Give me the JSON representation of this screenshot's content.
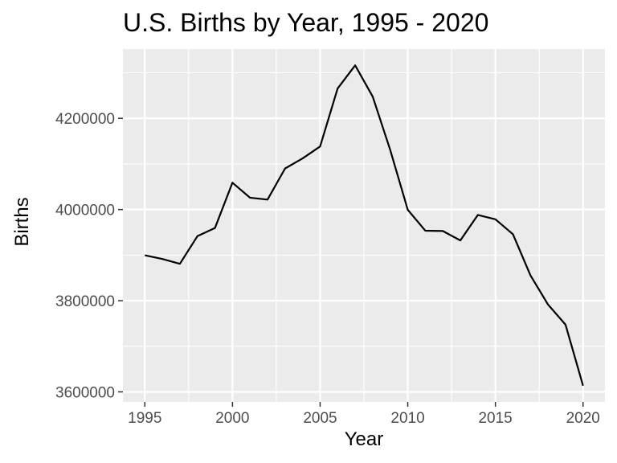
{
  "chart_data": {
    "type": "line",
    "title": "U.S. Births by Year, 1995 - 2020",
    "xlabel": "Year",
    "ylabel": "Births",
    "x": [
      1995,
      1996,
      1997,
      1998,
      1999,
      2000,
      2001,
      2002,
      2003,
      2004,
      2005,
      2006,
      2007,
      2008,
      2009,
      2010,
      2011,
      2012,
      2013,
      2014,
      2015,
      2016,
      2017,
      2018,
      2019,
      2020
    ],
    "series": [
      {
        "values": [
          3899589,
          3891494,
          3880894,
          3941553,
          3959417,
          4058814,
          4025933,
          4021726,
          4089950,
          4112052,
          4138349,
          4265555,
          4316233,
          4247694,
          4130665,
          3999386,
          3953590,
          3952841,
          3932181,
          3988076,
          3978497,
          3945875,
          3855500,
          3791712,
          3747540,
          3613647
        ]
      }
    ],
    "xlim": [
      1993.75,
      2021.25
    ],
    "ylim": [
      3578000,
      4352000
    ],
    "x_ticks": [
      1995,
      2000,
      2005,
      2010,
      2015,
      2020
    ],
    "y_ticks": [
      3600000,
      3800000,
      4000000,
      4200000
    ],
    "x_tick_labels": [
      "1995",
      "2000",
      "2005",
      "2010",
      "2015",
      "2020"
    ],
    "y_tick_labels": [
      "3600000",
      "3800000",
      "4000000",
      "4200000"
    ],
    "grid": true,
    "panel_color": "#ebebeb",
    "grid_color": "#ffffff",
    "line_color": "#000000"
  }
}
